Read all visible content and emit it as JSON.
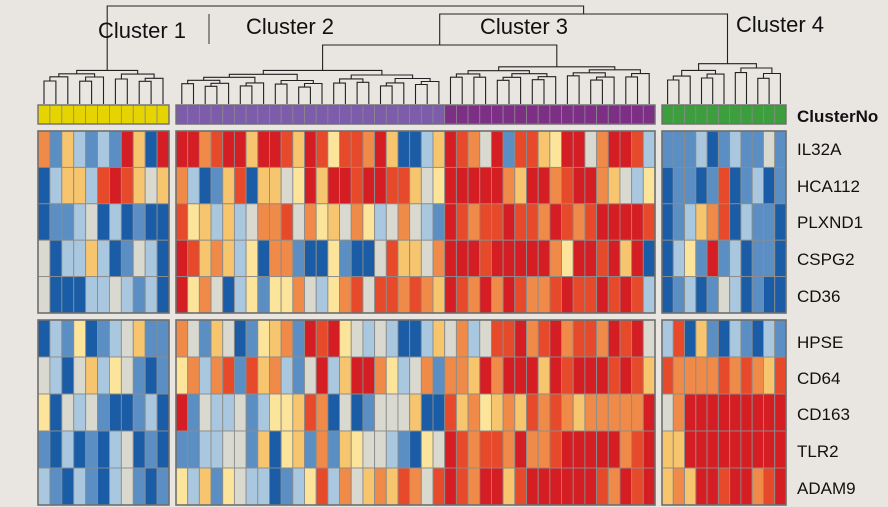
{
  "chart_data": {
    "type": "heatmap",
    "clusters": [
      {
        "name": "Cluster 1",
        "n": 11,
        "color": "#e6d400"
      },
      {
        "name": "Cluster 2",
        "n": 23,
        "color": "#7c5cab"
      },
      {
        "name": "Cluster 3",
        "n": 18,
        "color": "#7d2f86"
      },
      {
        "name": "Cluster 4",
        "n": 11,
        "color": "#3c9e3c"
      }
    ],
    "annotation_label": "ClusterNo",
    "genes": [
      "IL32A",
      "HCA112",
      "PLXND1",
      "CSPG2",
      "CD36",
      "HPSE",
      "CD64",
      "CD163",
      "TLR2",
      "ADAM9"
    ],
    "colorscale": [
      "#1a5ca6",
      "#5b8ec2",
      "#a9c8df",
      "#d9d9cf",
      "#fce59a",
      "#f6c56e",
      "#f08a48",
      "#e64a2a",
      "#d41e23"
    ],
    "matrix": [
      [
        6,
        1,
        5,
        2,
        1,
        2,
        1,
        8,
        5,
        0,
        8,
        8,
        8,
        6,
        7,
        8,
        8,
        5,
        8,
        8,
        7,
        5,
        8,
        7,
        4,
        7,
        7,
        6,
        8,
        5,
        0,
        0,
        2,
        5,
        8,
        7,
        6,
        3,
        8,
        1,
        7,
        7,
        5,
        4,
        8,
        8,
        3,
        6,
        8,
        8,
        7,
        2,
        1,
        1,
        1,
        2,
        0,
        1,
        2,
        1,
        1,
        3,
        1
      ],
      [
        0,
        2,
        5,
        5,
        2,
        7,
        8,
        7,
        5,
        3,
        5,
        6,
        2,
        0,
        1,
        5,
        7,
        0,
        5,
        5,
        3,
        4,
        8,
        5,
        8,
        8,
        7,
        8,
        8,
        7,
        7,
        5,
        3,
        4,
        8,
        8,
        8,
        8,
        8,
        6,
        5,
        8,
        8,
        6,
        7,
        8,
        8,
        6,
        5,
        3,
        2,
        4,
        0,
        1,
        1,
        0,
        1,
        7,
        0,
        1,
        2,
        0,
        1
      ],
      [
        0,
        1,
        1,
        2,
        3,
        0,
        2,
        0,
        1,
        0,
        0,
        7,
        4,
        5,
        2,
        5,
        2,
        3,
        6,
        6,
        7,
        3,
        6,
        4,
        5,
        3,
        6,
        4,
        2,
        3,
        6,
        3,
        2,
        1,
        8,
        7,
        6,
        7,
        7,
        8,
        7,
        7,
        6,
        8,
        7,
        6,
        7,
        8,
        8,
        8,
        8,
        7,
        0,
        1,
        2,
        5,
        6,
        7,
        0,
        2,
        1,
        1,
        0
      ],
      [
        3,
        0,
        2,
        2,
        5,
        2,
        0,
        1,
        3,
        2,
        0,
        8,
        7,
        5,
        6,
        5,
        2,
        4,
        0,
        6,
        6,
        1,
        0,
        0,
        4,
        1,
        0,
        0,
        3,
        7,
        5,
        5,
        3,
        6,
        8,
        8,
        8,
        7,
        8,
        8,
        8,
        8,
        8,
        6,
        4,
        8,
        8,
        7,
        8,
        5,
        8,
        0,
        0,
        2,
        4,
        1,
        8,
        1,
        2,
        0,
        1,
        1,
        0
      ],
      [
        3,
        0,
        0,
        0,
        2,
        2,
        3,
        2,
        1,
        2,
        0,
        8,
        4,
        6,
        3,
        0,
        2,
        4,
        1,
        4,
        4,
        6,
        3,
        2,
        4,
        6,
        7,
        3,
        7,
        7,
        6,
        7,
        6,
        5,
        8,
        7,
        6,
        8,
        6,
        8,
        7,
        6,
        6,
        7,
        8,
        7,
        7,
        8,
        7,
        8,
        7,
        2,
        0,
        1,
        2,
        0,
        1,
        3,
        2,
        0,
        1,
        0,
        0
      ],
      [
        0,
        2,
        1,
        4,
        0,
        1,
        2,
        3,
        5,
        1,
        1,
        6,
        3,
        1,
        5,
        3,
        0,
        1,
        4,
        5,
        6,
        1,
        8,
        7,
        8,
        4,
        3,
        2,
        3,
        2,
        0,
        0,
        2,
        5,
        3,
        6,
        2,
        3,
        7,
        7,
        8,
        6,
        7,
        8,
        6,
        7,
        7,
        6,
        8,
        7,
        8,
        3,
        2,
        7,
        0,
        5,
        1,
        0,
        2,
        1,
        0,
        2,
        1
      ],
      [
        3,
        2,
        0,
        3,
        5,
        2,
        4,
        3,
        1,
        0,
        1,
        4,
        6,
        2,
        6,
        7,
        1,
        7,
        5,
        6,
        2,
        1,
        3,
        8,
        2,
        5,
        8,
        8,
        6,
        4,
        2,
        3,
        6,
        1,
        6,
        6,
        5,
        8,
        6,
        8,
        8,
        8,
        5,
        8,
        7,
        8,
        8,
        8,
        7,
        8,
        7,
        5,
        7,
        6,
        6,
        6,
        6,
        7,
        6,
        7,
        6,
        5,
        7
      ],
      [
        4,
        0,
        3,
        2,
        3,
        1,
        0,
        0,
        1,
        2,
        0,
        8,
        1,
        3,
        2,
        2,
        3,
        1,
        2,
        4,
        4,
        5,
        7,
        6,
        0,
        3,
        0,
        1,
        3,
        3,
        3,
        5,
        0,
        0,
        7,
        5,
        6,
        4,
        5,
        6,
        5,
        7,
        6,
        7,
        6,
        5,
        6,
        6,
        6,
        6,
        6,
        8,
        3,
        6,
        8,
        8,
        8,
        8,
        8,
        8,
        8,
        8,
        8
      ],
      [
        1,
        0,
        2,
        0,
        1,
        0,
        2,
        3,
        0,
        1,
        0,
        1,
        1,
        2,
        2,
        3,
        3,
        1,
        5,
        0,
        4,
        5,
        1,
        6,
        1,
        5,
        4,
        3,
        3,
        2,
        1,
        0,
        4,
        3,
        8,
        7,
        6,
        7,
        7,
        6,
        8,
        6,
        6,
        7,
        8,
        8,
        8,
        8,
        8,
        6,
        7,
        8,
        5,
        5,
        8,
        8,
        8,
        8,
        8,
        8,
        8,
        8,
        8
      ],
      [
        2,
        1,
        0,
        2,
        1,
        0,
        2,
        3,
        1,
        0,
        1,
        4,
        2,
        5,
        1,
        4,
        3,
        2,
        2,
        0,
        1,
        2,
        4,
        7,
        2,
        6,
        3,
        5,
        6,
        5,
        7,
        6,
        3,
        7,
        8,
        7,
        6,
        8,
        8,
        5,
        7,
        8,
        8,
        8,
        8,
        8,
        8,
        7,
        6,
        8,
        7,
        8,
        5,
        6,
        5,
        8,
        8,
        7,
        8,
        8,
        6,
        7,
        8
      ]
    ]
  }
}
